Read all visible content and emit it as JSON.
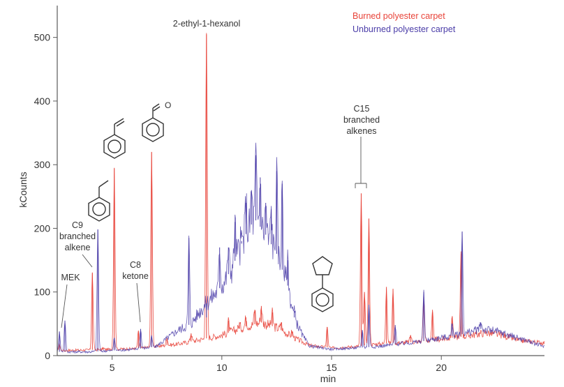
{
  "chart_data": {
    "type": "line",
    "xlabel": "min",
    "ylabel": "kCounts",
    "xlim": [
      2.5,
      24.7
    ],
    "ylim": [
      0,
      550
    ],
    "x_ticks": [
      5,
      10,
      15,
      20
    ],
    "y_ticks": [
      0,
      100,
      200,
      300,
      400,
      500
    ],
    "legend_position": "top-right",
    "series": [
      {
        "name": "Burned polyester carpet",
        "color": "#e8443a",
        "baseline": [
          [
            2.5,
            8
          ],
          [
            4,
            9
          ],
          [
            6,
            11
          ],
          [
            8,
            18
          ],
          [
            9,
            25
          ],
          [
            10,
            32
          ],
          [
            11,
            45
          ],
          [
            11.8,
            52
          ],
          [
            12.5,
            44
          ],
          [
            13.3,
            28
          ],
          [
            14,
            16
          ],
          [
            15,
            12
          ],
          [
            16,
            14
          ],
          [
            17,
            18
          ],
          [
            18,
            20
          ],
          [
            19,
            22
          ],
          [
            20,
            26
          ],
          [
            21,
            30
          ],
          [
            22,
            36
          ],
          [
            22.8,
            32
          ],
          [
            23.5,
            24
          ],
          [
            24.7,
            20
          ]
        ],
        "peaks": [
          [
            2.6,
            18
          ],
          [
            4.1,
            130
          ],
          [
            4.6,
            12
          ],
          [
            5.1,
            295
          ],
          [
            6.2,
            38
          ],
          [
            6.8,
            320
          ],
          [
            7.5,
            28
          ],
          [
            8.6,
            35
          ],
          [
            9.3,
            505
          ],
          [
            10.3,
            55
          ],
          [
            10.8,
            50
          ],
          [
            11.1,
            60
          ],
          [
            11.5,
            72
          ],
          [
            11.8,
            78
          ],
          [
            12.3,
            68
          ],
          [
            12.7,
            52
          ],
          [
            13.2,
            38
          ],
          [
            14.8,
            45
          ],
          [
            16.35,
            255
          ],
          [
            16.5,
            100
          ],
          [
            16.7,
            215
          ],
          [
            17.5,
            108
          ],
          [
            17.8,
            105
          ],
          [
            18.6,
            32
          ],
          [
            19.2,
            92
          ],
          [
            19.6,
            68
          ],
          [
            20.5,
            62
          ],
          [
            20.9,
            160
          ]
        ]
      },
      {
        "name": "Unburned polyester carpet",
        "color": "#4a3ca8",
        "baseline": [
          [
            2.5,
            6
          ],
          [
            4,
            6
          ],
          [
            5,
            8
          ],
          [
            6,
            10
          ],
          [
            7,
            14
          ],
          [
            8,
            40
          ],
          [
            8.6,
            50
          ],
          [
            9,
            70
          ],
          [
            9.5,
            90
          ],
          [
            10,
            110
          ],
          [
            10.5,
            140
          ],
          [
            11,
            185
          ],
          [
            11.5,
            215
          ],
          [
            12,
            190
          ],
          [
            12.5,
            160
          ],
          [
            13,
            110
          ],
          [
            13.3,
            60
          ],
          [
            13.7,
            30
          ],
          [
            14,
            15
          ],
          [
            15,
            10
          ],
          [
            16,
            12
          ],
          [
            17,
            14
          ],
          [
            18,
            18
          ],
          [
            19,
            22
          ],
          [
            20,
            28
          ],
          [
            21,
            34
          ],
          [
            21.8,
            42
          ],
          [
            22.5,
            38
          ],
          [
            23.5,
            28
          ],
          [
            24.7,
            14
          ]
        ],
        "peaks": [
          [
            2.6,
            38
          ],
          [
            2.85,
            55
          ],
          [
            4.35,
            198
          ],
          [
            5.1,
            28
          ],
          [
            6.3,
            42
          ],
          [
            6.8,
            30
          ],
          [
            8.5,
            185
          ],
          [
            9.3,
            60
          ],
          [
            9.9,
            170
          ],
          [
            10.3,
            170
          ],
          [
            10.6,
            210
          ],
          [
            10.9,
            180
          ],
          [
            11.1,
            240
          ],
          [
            11.35,
            260
          ],
          [
            11.55,
            315
          ],
          [
            11.75,
            280
          ],
          [
            12,
            240
          ],
          [
            12.25,
            230
          ],
          [
            12.5,
            290
          ],
          [
            12.75,
            270
          ],
          [
            13,
            150
          ],
          [
            13.3,
            70
          ],
          [
            16.4,
            40
          ],
          [
            16.7,
            80
          ],
          [
            17.9,
            48
          ],
          [
            19.2,
            100
          ],
          [
            20.5,
            50
          ],
          [
            20.95,
            195
          ],
          [
            21.8,
            52
          ]
        ]
      }
    ],
    "annotations": [
      {
        "id": "mek",
        "lines": [
          "MEK"
        ]
      },
      {
        "id": "c9",
        "lines": [
          "C9",
          "branched",
          "alkene"
        ]
      },
      {
        "id": "c8",
        "lines": [
          "C8",
          "ketone"
        ]
      },
      {
        "id": "ethylhexanol",
        "lines": [
          "2-ethyl-1-hexanol"
        ]
      },
      {
        "id": "c15",
        "lines": [
          "C15",
          "branched",
          "alkenes"
        ]
      }
    ]
  }
}
